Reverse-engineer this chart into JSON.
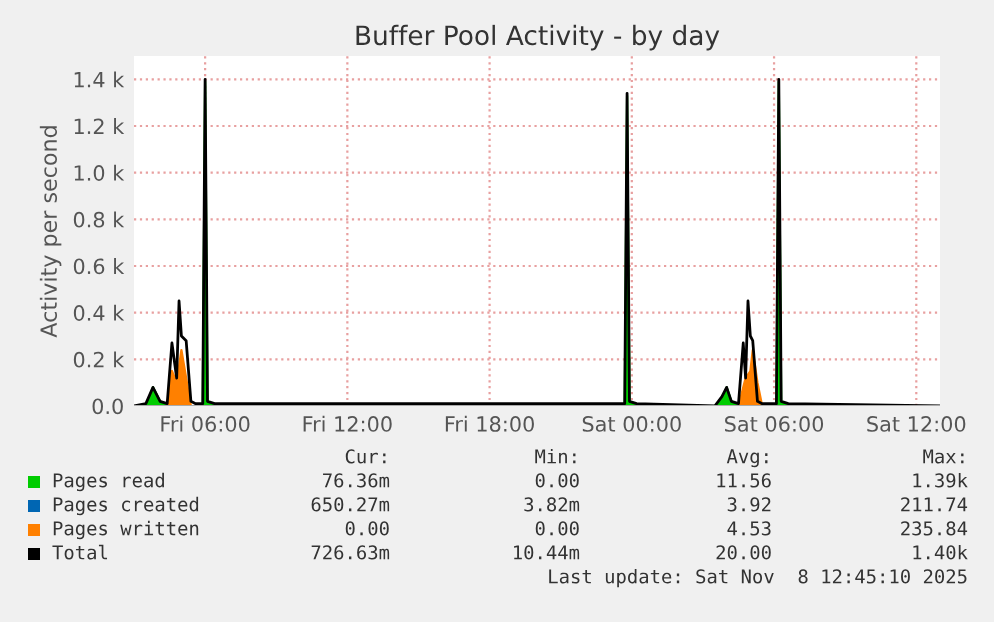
{
  "chart_data": {
    "type": "area",
    "title": "Buffer Pool Activity - by day",
    "ylabel": "Activity per second",
    "xlim": [
      "2025-11-07T03:00",
      "2025-11-08T13:00"
    ],
    "xticks": [
      {
        "value": "2025-11-07T06:00",
        "label": "Fri 06:00"
      },
      {
        "value": "2025-11-07T12:00",
        "label": "Fri 12:00"
      },
      {
        "value": "2025-11-07T18:00",
        "label": "Fri 18:00"
      },
      {
        "value": "2025-11-08T00:00",
        "label": "Sat 00:00"
      },
      {
        "value": "2025-11-08T06:00",
        "label": "Sat 06:00"
      },
      {
        "value": "2025-11-08T12:00",
        "label": "Sat 12:00"
      }
    ],
    "ylim": [
      0,
      1500
    ],
    "yticks": [
      {
        "value": 0,
        "label": "0.0"
      },
      {
        "value": 200,
        "label": "0.2 k"
      },
      {
        "value": 400,
        "label": "0.4 k"
      },
      {
        "value": 600,
        "label": "0.6 k"
      },
      {
        "value": 800,
        "label": "0.8 k"
      },
      {
        "value": 1000,
        "label": "1.0 k"
      },
      {
        "value": 1200,
        "label": "1.2 k"
      },
      {
        "value": 1400,
        "label": "1.4 k"
      }
    ],
    "grid": true,
    "legend": "bottom",
    "series": [
      {
        "name": "Pages read",
        "color": "#00cc00",
        "x": [
          "2025-11-07T03:00",
          "2025-11-07T03:30",
          "2025-11-07T03:48",
          "2025-11-07T04:06",
          "2025-11-07T04:24",
          "2025-11-07T05:36",
          "2025-11-07T05:54",
          "2025-11-07T06:00",
          "2025-11-07T06:06",
          "2025-11-07T06:24",
          "2025-11-07T23:30",
          "2025-11-07T23:42",
          "2025-11-07T23:48",
          "2025-11-07T23:54",
          "2025-11-08T00:12",
          "2025-11-08T03:30",
          "2025-11-08T03:48",
          "2025-11-08T04:00",
          "2025-11-08T04:12",
          "2025-11-08T04:30",
          "2025-11-08T05:54",
          "2025-11-08T06:06",
          "2025-11-08T06:12",
          "2025-11-08T06:18",
          "2025-11-08T06:36",
          "2025-11-08T13:00"
        ],
        "values": [
          0,
          0,
          80,
          20,
          0,
          0,
          10,
          1390,
          20,
          0,
          0,
          10,
          1330,
          20,
          0,
          0,
          30,
          80,
          20,
          0,
          0,
          10,
          1390,
          20,
          0,
          0
        ]
      },
      {
        "name": "Pages created",
        "color": "#0066b3"
      },
      {
        "name": "Pages written",
        "color": "#ff8000",
        "x": [
          "2025-11-07T03:00",
          "2025-11-07T04:24",
          "2025-11-07T04:36",
          "2025-11-07T04:48",
          "2025-11-07T05:00",
          "2025-11-07T05:12",
          "2025-11-07T05:24",
          "2025-11-08T04:30",
          "2025-11-08T04:48",
          "2025-11-08T05:00",
          "2025-11-08T05:06",
          "2025-11-08T05:18",
          "2025-11-08T05:30",
          "2025-11-08T13:00"
        ],
        "values": [
          0,
          0,
          150,
          100,
          240,
          120,
          0,
          0,
          120,
          150,
          240,
          100,
          0,
          0
        ]
      },
      {
        "name": "Total",
        "color": "#000000",
        "type": "line",
        "x": [
          "2025-11-07T03:00",
          "2025-11-07T03:30",
          "2025-11-07T03:48",
          "2025-11-07T04:06",
          "2025-11-07T04:24",
          "2025-11-07T04:36",
          "2025-11-07T04:48",
          "2025-11-07T04:54",
          "2025-11-07T05:00",
          "2025-11-07T05:12",
          "2025-11-07T05:24",
          "2025-11-07T05:36",
          "2025-11-07T05:54",
          "2025-11-07T06:00",
          "2025-11-07T06:06",
          "2025-11-07T06:24",
          "2025-11-07T23:30",
          "2025-11-07T23:42",
          "2025-11-07T23:48",
          "2025-11-07T23:54",
          "2025-11-08T00:12",
          "2025-11-08T03:30",
          "2025-11-08T03:48",
          "2025-11-08T04:00",
          "2025-11-08T04:12",
          "2025-11-08T04:30",
          "2025-11-08T04:42",
          "2025-11-08T04:48",
          "2025-11-08T04:54",
          "2025-11-08T05:00",
          "2025-11-08T05:06",
          "2025-11-08T05:18",
          "2025-11-08T05:30",
          "2025-11-08T05:54",
          "2025-11-08T06:06",
          "2025-11-08T06:12",
          "2025-11-08T06:18",
          "2025-11-08T06:36",
          "2025-11-08T13:00"
        ],
        "values": [
          0,
          10,
          80,
          20,
          10,
          270,
          120,
          450,
          300,
          280,
          20,
          10,
          10,
          1400,
          20,
          10,
          10,
          10,
          1340,
          20,
          10,
          0,
          40,
          80,
          20,
          10,
          270,
          120,
          450,
          300,
          280,
          20,
          10,
          10,
          10,
          1400,
          20,
          10,
          0
        ]
      }
    ],
    "annotations": [
      "Cur:",
      "Min:",
      "Avg:",
      "Max:",
      "76.36m",
      "0.00",
      "11.56",
      "1.39k",
      "650.27m",
      "3.82m",
      "3.92",
      "211.74",
      "0.00",
      "0.00",
      "4.53",
      "235.84",
      "726.63m",
      "10.44m",
      "20.00",
      "1.40k",
      "Last update: Sat Nov  8 12:45:10 2025"
    ]
  }
}
